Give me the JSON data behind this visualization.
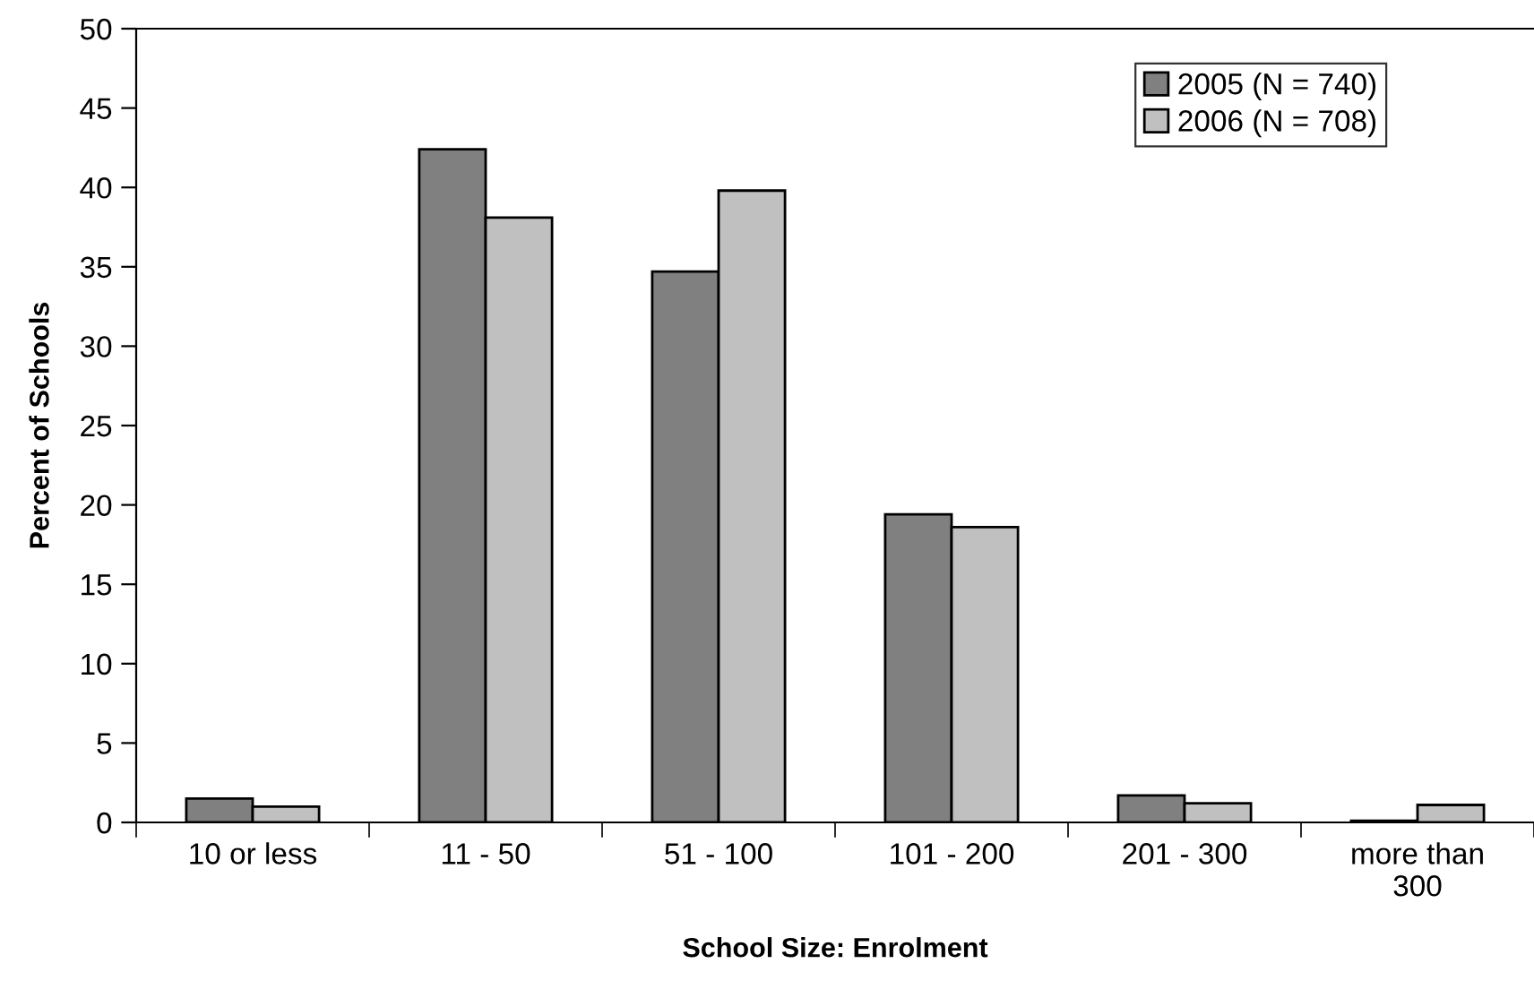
{
  "chart_data": {
    "type": "bar",
    "xlabel": "School Size: Enrolment",
    "ylabel": "Percent of Schools",
    "categories": [
      "10 or less",
      "11 - 50",
      "51 - 100",
      "101 - 200",
      "201 - 300",
      "more than\n300"
    ],
    "series": [
      {
        "name": "2005 (N = 740)",
        "color": "#808080",
        "values": [
          1.5,
          42.4,
          34.7,
          19.4,
          1.7,
          0.1
        ]
      },
      {
        "name": "2006 (N = 708)",
        "color": "#c0c0c0",
        "values": [
          1.0,
          38.1,
          39.8,
          18.6,
          1.2,
          1.1
        ]
      }
    ],
    "ylim": [
      0,
      50
    ],
    "yticks": [
      0,
      5,
      10,
      15,
      20,
      25,
      30,
      35,
      40,
      45,
      50
    ],
    "grid": false,
    "legend": "top right"
  }
}
